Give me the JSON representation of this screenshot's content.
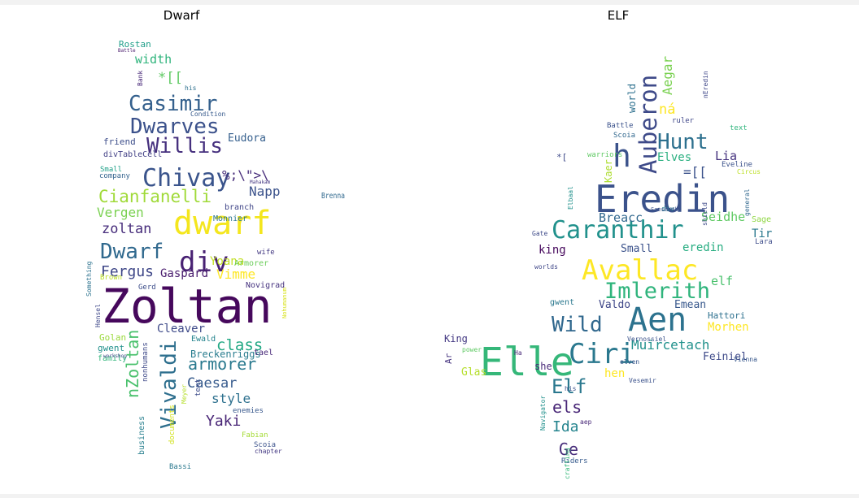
{
  "chart_data": [
    {
      "type": "wordcloud",
      "title": "Dwarf",
      "words": [
        {
          "text": "Zoltan",
          "color": "#46085c"
        },
        {
          "text": "dwarf",
          "color": "#f4e61e"
        },
        {
          "text": "div",
          "color": "#482173"
        },
        {
          "text": "Chivay",
          "color": "#3a548c"
        },
        {
          "text": "Dwarf",
          "color": "#30698e"
        },
        {
          "text": "Willis",
          "color": "#46307e"
        },
        {
          "text": "Dwarves",
          "color": "#3b518b"
        },
        {
          "text": "Casimir",
          "color": "#34608d"
        },
        {
          "text": "Cianfanelli",
          "color": "#a0da39"
        },
        {
          "text": "Vivaldi",
          "color": "#2e6f8e"
        },
        {
          "text": "nZoltan",
          "color": "#4ac16d"
        },
        {
          "text": "armorer",
          "color": "#29798e"
        },
        {
          "text": "Caesar",
          "color": "#375b8d"
        },
        {
          "text": "Fergus",
          "color": "#3f4788"
        },
        {
          "text": "class",
          "color": "#22a884"
        },
        {
          "text": "zoltan",
          "color": "#472d7b"
        },
        {
          "text": "style",
          "color": "#2d708e"
        },
        {
          "text": "Yaki",
          "color": "#482576"
        },
        {
          "text": "Vergen",
          "color": "#7ad151"
        },
        {
          "text": "Vimme",
          "color": "#fde725"
        },
        {
          "text": "Napp",
          "color": "#3b528b"
        },
        {
          "text": "Gaspard",
          "color": "#481b6d"
        },
        {
          "text": "width",
          "color": "#2fb47c"
        },
        {
          "text": "Eudora",
          "color": "#355f8d"
        },
        {
          "text": "Cleaver",
          "color": "#3e4a89"
        },
        {
          "text": "Breckenriggs",
          "color": "#287c8e"
        },
        {
          "text": "%;\\\">\\",
          "color": "#472c7a"
        },
        {
          "text": "*[[",
          "color": "#5ec962"
        },
        {
          "text": "Yoana",
          "color": "#c2df23"
        },
        {
          "text": "Rostan",
          "color": "#1f9e89"
        },
        {
          "text": "friend",
          "color": "#3d4e8a"
        },
        {
          "text": "Brenna",
          "color": "#30698e"
        },
        {
          "text": "Novigrad",
          "color": "#46337f"
        },
        {
          "text": "Armorer",
          "color": "#6ccd5a"
        },
        {
          "text": "wife",
          "color": "#443a83"
        },
        {
          "text": "gwent",
          "color": "#21918c"
        },
        {
          "text": "Golan",
          "color": "#9bd93c"
        },
        {
          "text": "family",
          "color": "#31b57b"
        },
        {
          "text": "Ewald",
          "color": "#25848e"
        },
        {
          "text": "tael",
          "color": "#482979"
        },
        {
          "text": "enemies",
          "color": "#38588c"
        },
        {
          "text": "Fabian",
          "color": "#a5db36"
        },
        {
          "text": "Scoia",
          "color": "#3b528b"
        },
        {
          "text": "Bassi",
          "color": "#2a788e"
        },
        {
          "text": "business",
          "color": "#277f8e"
        },
        {
          "text": "documents",
          "color": "#d2e21b"
        },
        {
          "text": "Meyer",
          "color": "#b5de2b"
        },
        {
          "text": "text",
          "color": "#3e4c8a"
        },
        {
          "text": "nonhumans",
          "color": "#3e4989"
        },
        {
          "text": "branch",
          "color": "#404688"
        },
        {
          "text": "Monnier",
          "color": "#2b758e"
        },
        {
          "text": "company",
          "color": "#33638d"
        },
        {
          "text": "divTableCell",
          "color": "#424086"
        },
        {
          "text": "Small",
          "color": "#1fa088"
        },
        {
          "text": "Brown",
          "color": "#bddf26"
        },
        {
          "text": "Something",
          "color": "#2c728e"
        },
        {
          "text": "Gerd",
          "color": "#3d4d8a"
        },
        {
          "text": "Hensel",
          "color": "#3f4889"
        },
        {
          "text": "Bank",
          "color": "#482878"
        },
        {
          "text": "his",
          "color": "#2d708e"
        },
        {
          "text": "Condition",
          "color": "#375a8c"
        },
        {
          "text": "Mahakam",
          "color": "#453882"
        },
        {
          "text": "Battle",
          "color": "#48196b"
        },
        {
          "text": "chapter",
          "color": "#443983"
        },
        {
          "text": "Nohumanum",
          "color": "#d8e219"
        },
        {
          "text": "workshop",
          "color": "#3f4788"
        }
      ]
    },
    {
      "type": "wordcloud",
      "title": "ELF",
      "words": [
        {
          "text": "Eredin",
          "color": "#3b528b"
        },
        {
          "text": "Elle",
          "color": "#35b779"
        },
        {
          "text": "Aen",
          "color": "#2c728e"
        },
        {
          "text": "Ciri",
          "color": "#2a788e"
        },
        {
          "text": "Avallac",
          "color": "#fde725"
        },
        {
          "text": "Caranthir",
          "color": "#21918c"
        },
        {
          "text": "Auberon",
          "color": "#3e4a89"
        },
        {
          "text": "Imlerith",
          "color": "#2fb47c"
        },
        {
          "text": "Hunt",
          "color": "#2d708e"
        },
        {
          "text": "h",
          "color": "#3b528b"
        },
        {
          "text": "Wild",
          "color": "#31688e"
        },
        {
          "text": "Elf",
          "color": "#2a788e"
        },
        {
          "text": "els",
          "color": "#482677"
        },
        {
          "text": "Ida",
          "color": "#25848e"
        },
        {
          "text": "Ge",
          "color": "#472c7a"
        },
        {
          "text": "Muircetach",
          "color": "#21918c"
        },
        {
          "text": "Breacc",
          "color": "#31688e"
        },
        {
          "text": "Seidhe",
          "color": "#5ec962"
        },
        {
          "text": "Aegar",
          "color": "#7ad151"
        },
        {
          "text": "world",
          "color": "#2d708e"
        },
        {
          "text": "Lia",
          "color": "#46337f"
        },
        {
          "text": "Elves",
          "color": "#29af7f"
        },
        {
          "text": "Kaer",
          "color": "#addc30"
        },
        {
          "text": "king",
          "color": "#46085c"
        },
        {
          "text": "eredin",
          "color": "#27ad81"
        },
        {
          "text": "elf",
          "color": "#4ac16d"
        },
        {
          "text": "Emean",
          "color": "#38588c"
        },
        {
          "text": "Morhen",
          "color": "#fde725"
        },
        {
          "text": "Feiniel",
          "color": "#3e4a89"
        },
        {
          "text": "Tir",
          "color": "#2a788e"
        },
        {
          "text": "Valdo",
          "color": "#3f4788"
        },
        {
          "text": "Small",
          "color": "#3b528b"
        },
        {
          "text": "King",
          "color": "#443983"
        },
        {
          "text": "Glas",
          "color": "#b5de2b"
        },
        {
          "text": "she",
          "color": "#482878"
        },
        {
          "text": "hen",
          "color": "#fde725"
        },
        {
          "text": "Hattori",
          "color": "#2d708e"
        },
        {
          "text": "Ar",
          "color": "#46337f"
        },
        {
          "text": "gwent",
          "color": "#2a788e"
        },
        {
          "text": "Riders",
          "color": "#375b8d"
        },
        {
          "text": "Lara",
          "color": "#3e4c8a"
        },
        {
          "text": "Sage",
          "color": "#8fd744"
        },
        {
          "text": "Battle",
          "color": "#3b528b"
        },
        {
          "text": "Scoia",
          "color": "#31688e"
        },
        {
          "text": "ruler",
          "color": "#3f4788"
        },
        {
          "text": "text",
          "color": "#2fb47c"
        },
        {
          "text": "warriors",
          "color": "#5ec962"
        },
        {
          "text": "Eveline",
          "color": "#3b528b"
        },
        {
          "text": "Gate",
          "color": "#3e4a89"
        },
        {
          "text": "worlds",
          "color": "#3f4788"
        },
        {
          "text": "div",
          "color": "#2a788e"
        },
        {
          "text": "Vesemir",
          "color": "#3b528b"
        },
        {
          "text": "elven",
          "color": "#38588c"
        },
        {
          "text": "Navigator",
          "color": "#21918c"
        },
        {
          "text": "power",
          "color": "#5ec962"
        },
        {
          "text": "aep",
          "color": "#482878"
        },
        {
          "text": "Circus",
          "color": "#bddf26"
        },
        {
          "text": "his",
          "color": "#3b528b"
        },
        {
          "text": "general",
          "color": "#31688e"
        },
        {
          "text": "Vernossiel",
          "color": "#3b528b"
        },
        {
          "text": "Elbaal",
          "color": "#21918c"
        },
        {
          "text": "crafting",
          "color": "#35b779"
        },
        {
          "text": "nEredin",
          "color": "#3f4788"
        },
        {
          "text": "Ha",
          "color": "#482878"
        },
        {
          "text": "Vienna",
          "color": "#38588c"
        },
        {
          "text": "shield",
          "color": "#3e4a89"
        },
        {
          "text": "Saesenthe",
          "color": "#3b528b"
        },
        {
          "text": "ná",
          "color": "#fde725"
        },
        {
          "text": "=[[",
          "color": "#3b528b"
        },
        {
          "text": "*[",
          "color": "#3e4a89"
        }
      ]
    }
  ]
}
